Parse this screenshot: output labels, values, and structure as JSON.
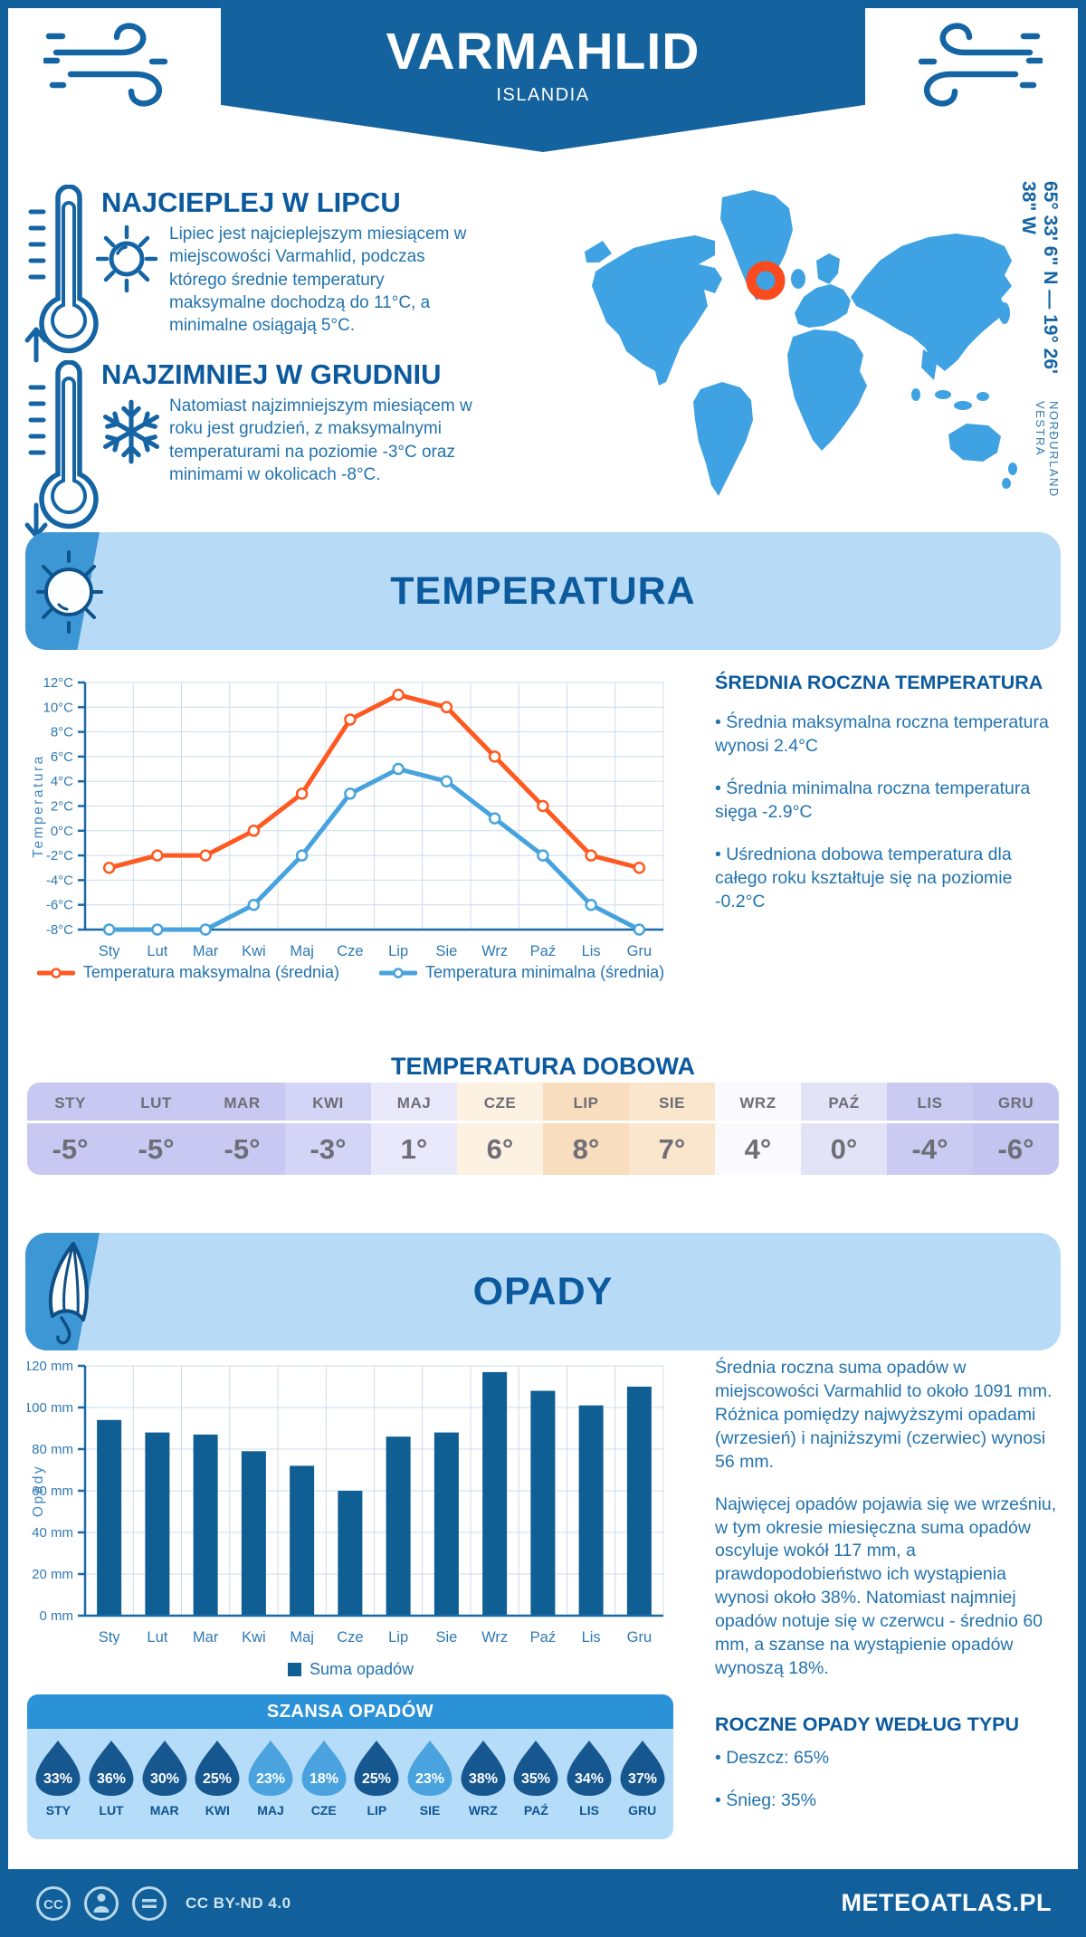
{
  "theme": {
    "primary_dark": "#11609b",
    "banner_blue": "#15639e",
    "heading_blue": "#0c5a9e",
    "body_blue": "#2273ae",
    "accent_blue": "#1565a5",
    "light_banner_bg": "#b7dbf6",
    "tab_blue": "#3e97d5",
    "chance_header": "#2b92d8",
    "chance_bg": "#b5dcf8",
    "table_text": "#6e6e76",
    "axis_blue": "#2f7ab2",
    "grid_color": "#ccdcec",
    "footer_text": "#cfe3f1"
  },
  "header": {
    "title": "VARMAHLID",
    "subtitle": "ISLANDIA"
  },
  "location": {
    "coordinates": "65° 33' 6\" N — 19° 26' 38\" W",
    "region": "NORÐURLAND VESTRA",
    "map": {
      "land_color": "#3fa2e2",
      "marker_color": "#fb4a1b"
    }
  },
  "highlights": {
    "warm": {
      "title": "NAJCIEPLEJ W LIPCU",
      "text": "Lipiec jest najcieplejszym miesiącem w miejscowości Varmahlid, podczas którego średnie temperatury maksymalne dochodzą do 11°C, a minimalne osiągają 5°C."
    },
    "cold": {
      "title": "NAJZIMNIEJ W GRUDNIU",
      "text": "Natomiast najzimniejszym miesiącem w roku jest grudzień, z maksymalnymi temperaturami na poziomie -3°C oraz minimami w okolicach -8°C."
    }
  },
  "temperature_section": {
    "title": "TEMPERATURA",
    "annual": {
      "title": "ŚREDNIA ROCZNA TEMPERATURA",
      "bullets": [
        "• Średnia maksymalna roczna temperatura wynosi 2.4°C",
        "• Średnia minimalna roczna temperatura sięga -2.9°C",
        "• Uśredniona dobowa temperatura dla całego roku kształtuje się na poziomie -0.2°C"
      ]
    },
    "daily": {
      "title": "TEMPERATURA DOBOWA",
      "months": [
        "STY",
        "LUT",
        "MAR",
        "KWI",
        "MAJ",
        "CZE",
        "LIP",
        "SIE",
        "WRZ",
        "PAŹ",
        "LIS",
        "GRU"
      ],
      "values": [
        "-5°",
        "-5°",
        "-5°",
        "-3°",
        "1°",
        "6°",
        "8°",
        "7°",
        "4°",
        "0°",
        "-4°",
        "-6°"
      ],
      "cell_colors": [
        "#c8c8f2",
        "#c8c8f2",
        "#c8c8f2",
        "#d4d4f6",
        "#e9e9fb",
        "#fdf2e2",
        "#f8ddbf",
        "#fae5cd",
        "#faf9fd",
        "#e3e3f8",
        "#cacaf3",
        "#c4c4f1"
      ]
    }
  },
  "precipitation_section": {
    "title": "OPADY",
    "summary": [
      "Średnia roczna suma opadów w miejscowości Varmahlid to około 1091 mm. Różnica pomiędzy najwyższymi opadami (wrzesień) i najniższymi (czerwiec) wynosi 56 mm.",
      "Najwięcej opadów pojawia się we wrześniu, w tym okresie miesięczna suma opadów oscyluje wokół 117 mm, a prawdopodobieństwo ich wystąpienia wynosi około 38%. Natomiast najmniej opadów notuje się w czerwcu - średnio 60 mm, a szanse na wystąpienie opadów wynoszą 18%."
    ],
    "by_type": {
      "title": "ROCZNE OPADY WEDŁUG TYPU",
      "bullets": [
        "• Deszcz: 65%",
        "• Śnieg: 35%"
      ]
    },
    "chance": {
      "title": "SZANSA OPADÓW",
      "months": [
        "STY",
        "LUT",
        "MAR",
        "KWI",
        "MAJ",
        "CZE",
        "LIP",
        "SIE",
        "WRZ",
        "PAŹ",
        "LIS",
        "GRU"
      ],
      "values": [
        "33%",
        "36%",
        "30%",
        "25%",
        "23%",
        "18%",
        "25%",
        "23%",
        "38%",
        "35%",
        "34%",
        "37%"
      ],
      "dark_color": "#17578f",
      "light_color": "#4aa3de",
      "light_indices": [
        4,
        5,
        7
      ]
    }
  },
  "footer": {
    "license": "CC BY-ND 4.0",
    "brand": "METEOATLAS.PL"
  },
  "chart_data": [
    {
      "type": "line",
      "title": "TEMPERATURA",
      "categories": [
        "Sty",
        "Lut",
        "Mar",
        "Kwi",
        "Maj",
        "Cze",
        "Lip",
        "Sie",
        "Wrz",
        "Paź",
        "Lis",
        "Gru"
      ],
      "series": [
        {
          "name": "Temperatura maksymalna (średnia)",
          "color": "#fd5a21",
          "values": [
            -3,
            -2,
            -2,
            0,
            3,
            9,
            11,
            10,
            6,
            2,
            -2,
            -3
          ]
        },
        {
          "name": "Temperatura minimalna (średnia)",
          "color": "#47a3de",
          "values": [
            -8,
            -8,
            -8,
            -6,
            -2,
            3,
            5,
            4,
            1,
            -2,
            -6,
            -8
          ]
        }
      ],
      "xlabel": "",
      "ylabel": "Temperatura",
      "ylim": [
        -8,
        12
      ],
      "ytick_step": 2,
      "ytick_suffix": "°C",
      "grid": true,
      "legend_position": "bottom"
    },
    {
      "type": "bar",
      "title": "OPADY",
      "categories": [
        "Sty",
        "Lut",
        "Mar",
        "Kwi",
        "Maj",
        "Cze",
        "Lip",
        "Sie",
        "Wrz",
        "Paź",
        "Lis",
        "Gru"
      ],
      "series": [
        {
          "name": "Suma opadów",
          "color": "#0f5e94",
          "values": [
            94,
            88,
            87,
            79,
            72,
            60,
            86,
            88,
            117,
            108,
            101,
            110
          ]
        }
      ],
      "xlabel": "",
      "ylabel": "Opady",
      "ylim": [
        0,
        120
      ],
      "ytick_step": 20,
      "ytick_suffix": " mm",
      "grid": true,
      "legend_position": "bottom"
    }
  ]
}
